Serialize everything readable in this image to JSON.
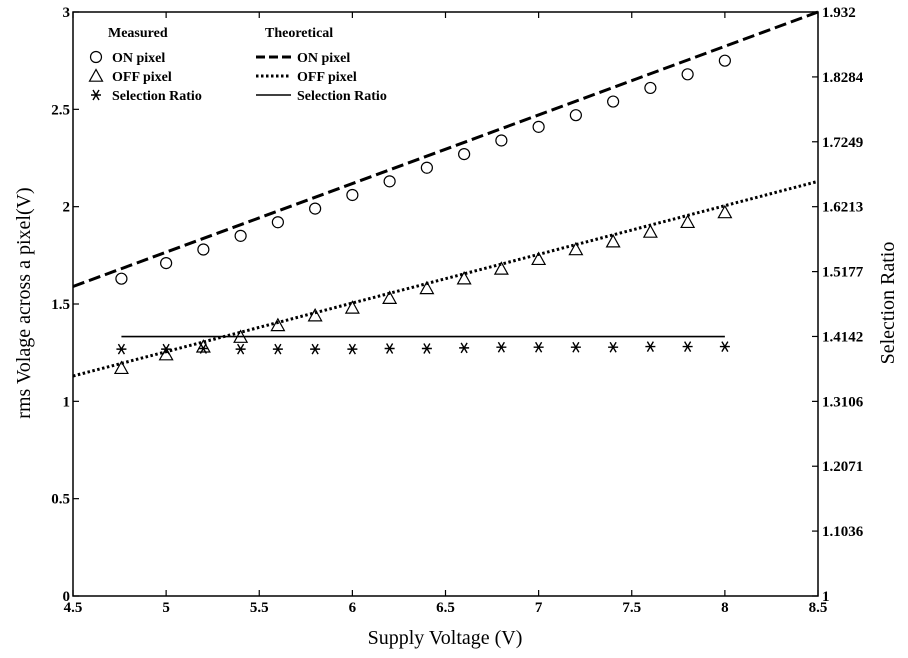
{
  "chart_data": {
    "type": "scatter",
    "xlabel": "Supply Voltage (V)",
    "ylabel": "rms Volage across a pixel(V)",
    "y2label": "Selection Ratio",
    "xlim": [
      4.5,
      8.5
    ],
    "ylim": [
      0,
      3
    ],
    "y2lim": [
      1,
      1.932
    ],
    "x_ticks": [
      "4.5",
      "5",
      "5.5",
      "6",
      "6.5",
      "7",
      "7.5",
      "8",
      "8.5"
    ],
    "y_ticks": [
      "0",
      "0.5",
      "1",
      "1.5",
      "2",
      "2.5",
      "3"
    ],
    "y2_ticks": [
      "1",
      "1.1036",
      "1.2071",
      "1.3106",
      "1.4142",
      "1.5177",
      "1.6213",
      "1.7249",
      "1.8284",
      "1.932"
    ],
    "grid": false,
    "legend_groups": [
      {
        "title": "Measured",
        "entries": [
          "ON pixel",
          "OFF pixel",
          "Selection Ratio"
        ]
      },
      {
        "title": "Theoretical",
        "entries": [
          "ON pixel",
          "OFF pixel",
          "Selection Ratio"
        ]
      }
    ],
    "series": [
      {
        "name": "ON pixel",
        "group": "Measured",
        "marker": "circle",
        "axis": "left",
        "x": [
          4.76,
          5.0,
          5.2,
          5.4,
          5.6,
          5.8,
          6.0,
          6.2,
          6.4,
          6.6,
          6.8,
          7.0,
          7.2,
          7.4,
          7.6,
          7.8,
          8.0
        ],
        "y": [
          1.63,
          1.71,
          1.78,
          1.85,
          1.92,
          1.99,
          2.06,
          2.13,
          2.2,
          2.27,
          2.34,
          2.41,
          2.47,
          2.54,
          2.61,
          2.68,
          2.75
        ]
      },
      {
        "name": "OFF pixel",
        "group": "Measured",
        "marker": "triangle",
        "axis": "left",
        "x": [
          4.76,
          5.0,
          5.2,
          5.4,
          5.6,
          5.8,
          6.0,
          6.2,
          6.4,
          6.6,
          6.8,
          7.0,
          7.2,
          7.4,
          7.6,
          7.8,
          8.0
        ],
        "y": [
          1.17,
          1.24,
          1.28,
          1.33,
          1.39,
          1.44,
          1.48,
          1.53,
          1.58,
          1.63,
          1.68,
          1.73,
          1.78,
          1.82,
          1.87,
          1.92,
          1.97
        ]
      },
      {
        "name": "Selection Ratio",
        "group": "Measured",
        "marker": "asterisk",
        "axis": "right",
        "x": [
          4.76,
          5.0,
          5.2,
          5.4,
          5.6,
          5.8,
          6.0,
          6.2,
          6.4,
          6.6,
          6.8,
          7.0,
          7.2,
          7.4,
          7.6,
          7.8,
          8.0
        ],
        "y": [
          1.394,
          1.394,
          1.395,
          1.394,
          1.394,
          1.394,
          1.394,
          1.395,
          1.395,
          1.396,
          1.397,
          1.397,
          1.397,
          1.397,
          1.398,
          1.398,
          1.398
        ]
      },
      {
        "name": "ON pixel",
        "group": "Theoretical",
        "line": "dashed",
        "axis": "left",
        "x": [
          4.5,
          8.5
        ],
        "y": [
          1.59,
          3.0
        ]
      },
      {
        "name": "OFF pixel",
        "group": "Theoretical",
        "line": "dotted",
        "axis": "left",
        "x": [
          4.5,
          8.5
        ],
        "y": [
          1.13,
          2.13
        ]
      },
      {
        "name": "Selection Ratio",
        "group": "Theoretical",
        "line": "solid",
        "axis": "right",
        "x": [
          4.76,
          8.0
        ],
        "y": [
          1.414,
          1.414
        ]
      }
    ]
  }
}
